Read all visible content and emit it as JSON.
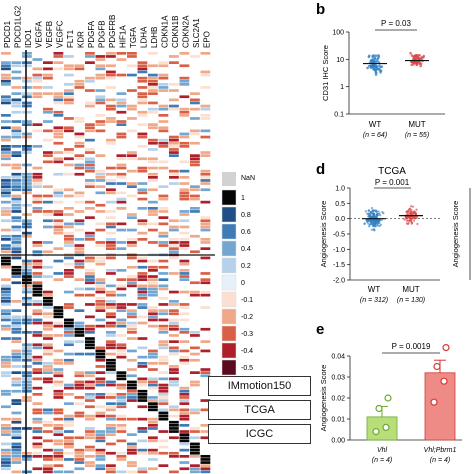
{
  "genes": [
    "PDCD1",
    "PDCD1LG2",
    "IDO1",
    "VEGFA",
    "VEGFB",
    "VEGFC",
    "FLT1",
    "KDR",
    "PDGFA",
    "PDGFB",
    "PDGFRB",
    "HIF1A",
    "TGFA",
    "LDHA",
    "LDHB",
    "CDKN1A",
    "CDKN1B",
    "CDKN2A",
    "SLC2A1",
    "EPO"
  ],
  "heatmap_scale": {
    "nan_label": "NaN",
    "labels": [
      "1",
      "0.8",
      "0.6",
      "0.4",
      "0.2",
      "0",
      "-0.1",
      "-0.2",
      "-0.3",
      "-0.4",
      "-0.5"
    ],
    "nan_color": "#d2d2d2",
    "colors": [
      "#050505",
      "#1f4f86",
      "#3f7cb6",
      "#73a7d2",
      "#b5d2ea",
      "#e7f0f8",
      "#fbe0d1",
      "#f0a988",
      "#d96047",
      "#ac1f2b",
      "#5a0b1d"
    ]
  },
  "cohorts": [
    "IMmotion150",
    "TCGA",
    "ICGC"
  ],
  "panels": {
    "b": "b",
    "d": "d",
    "e": "e"
  },
  "chart_data": [
    {
      "type": "scatter",
      "panel": "b",
      "ylabel": "CD31 IHC Score",
      "yscale": "log",
      "ylim": [
        0.1,
        100
      ],
      "yticks": [
        "100",
        "10",
        "1",
        "0.1"
      ],
      "categories": [
        "WT",
        "MUT"
      ],
      "n_labels": [
        "(n = 64)",
        "(n = 55)"
      ],
      "p_value": "P = 0.03",
      "colors": [
        "#2f7fc1",
        "#d64545"
      ],
      "medians": [
        7,
        9
      ]
    },
    {
      "type": "scatter",
      "panel": "d",
      "title": "TCGA",
      "ylabel": "Angiogenesis Score",
      "ylim": [
        -2.0,
        1.0
      ],
      "yticks": [
        "1.0",
        "0.5",
        "0.0",
        "-0.5",
        "-1.0",
        "-1.5",
        "-2.0"
      ],
      "categories": [
        "WT",
        "MUT"
      ],
      "n_labels": [
        "(n = 312)",
        "(n = 130)"
      ],
      "p_value": "P = 0.001",
      "colors": [
        "#2f7fc1",
        "#d64545"
      ],
      "medians": [
        0.0,
        0.1
      ]
    },
    {
      "type": "bar",
      "panel": "e",
      "ylabel": "Angiogenesis Score",
      "ylim": [
        0.0,
        0.04
      ],
      "yticks": [
        "0.04",
        "0.03",
        "0.02",
        "0.01",
        "0.00"
      ],
      "categories": [
        "Vhl",
        "Vhl;Pbrm1"
      ],
      "n_labels": [
        "(n = 4)",
        "(n = 4)"
      ],
      "p_value": "P = 0.0019",
      "values": [
        0.011,
        0.032
      ],
      "errors": [
        0.005,
        0.006
      ],
      "points": [
        [
          0.004,
          0.006,
          0.015,
          0.02
        ],
        [
          0.018,
          0.028,
          0.035,
          0.044
        ]
      ],
      "colors": [
        "#b8de7a",
        "#ef8b86"
      ],
      "point_colors": [
        "#6aaa32",
        "#d23a36"
      ]
    }
  ]
}
